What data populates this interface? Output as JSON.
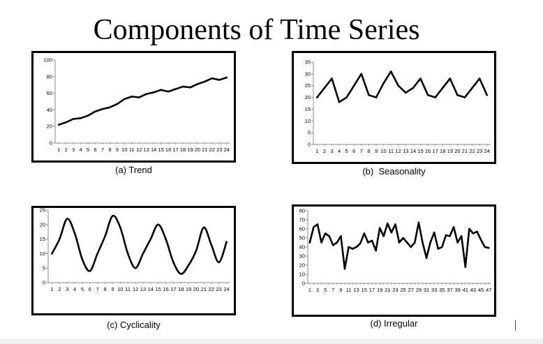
{
  "title": "Components of Time Series",
  "chart_data": [
    {
      "type": "line",
      "caption": "(a) Trend",
      "x": [
        1,
        2,
        3,
        4,
        5,
        6,
        7,
        8,
        9,
        10,
        11,
        12,
        13,
        14,
        15,
        16,
        17,
        18,
        19,
        20,
        21,
        22,
        23,
        24
      ],
      "values": [
        22,
        25,
        29,
        30,
        33,
        38,
        41,
        43,
        47,
        53,
        56,
        55,
        59,
        61,
        64,
        62,
        65,
        68,
        67,
        71,
        74,
        78,
        76,
        79
      ],
      "ylim": [
        0,
        100
      ],
      "yticks": [
        0,
        20,
        40,
        60,
        80,
        100
      ],
      "grid": false
    },
    {
      "type": "line",
      "caption": "(b)  Seasonality",
      "x": [
        1,
        2,
        3,
        4,
        5,
        6,
        7,
        8,
        9,
        10,
        11,
        12,
        13,
        14,
        15,
        16,
        17,
        18,
        19,
        20,
        21,
        22,
        23,
        24
      ],
      "values": [
        20,
        24,
        28,
        18,
        20,
        25,
        30,
        21,
        20,
        26,
        31,
        25,
        22,
        24,
        28,
        21,
        20,
        24,
        28,
        21,
        20,
        24,
        28,
        21
      ],
      "ylim": [
        0,
        35
      ],
      "yticks": [
        0,
        5,
        10,
        15,
        20,
        25,
        30,
        35
      ],
      "grid": false
    },
    {
      "type": "line",
      "caption": "(c) Cyclicality",
      "x": [
        1,
        2,
        3,
        4,
        5,
        6,
        7,
        8,
        9,
        10,
        11,
        12,
        13,
        14,
        15,
        16,
        17,
        18,
        19,
        20,
        21,
        22,
        23,
        24
      ],
      "values": [
        10,
        15,
        22,
        17,
        8,
        4,
        10,
        16,
        23,
        19,
        10,
        5,
        10,
        15,
        20,
        15,
        7,
        3,
        6,
        11,
        19,
        13,
        7,
        14
      ],
      "ylim": [
        0,
        25
      ],
      "yticks": [
        0,
        5,
        10,
        15,
        20,
        25
      ],
      "grid": false
    },
    {
      "type": "line",
      "caption": "(d) Irregular",
      "x": [
        1,
        2,
        3,
        4,
        5,
        6,
        7,
        8,
        9,
        10,
        11,
        12,
        13,
        14,
        15,
        16,
        17,
        18,
        19,
        20,
        21,
        22,
        23,
        24,
        25,
        26,
        27,
        28,
        29,
        30,
        31,
        32,
        33,
        34,
        35,
        36,
        37,
        38,
        39,
        40,
        41,
        42,
        43,
        44,
        45,
        46,
        47
      ],
      "values": [
        45,
        62,
        65,
        45,
        55,
        52,
        42,
        45,
        52,
        16,
        40,
        38,
        40,
        44,
        55,
        45,
        47,
        36,
        61,
        52,
        66,
        56,
        65,
        45,
        50,
        45,
        40,
        45,
        67,
        45,
        28,
        45,
        56,
        38,
        40,
        53,
        52,
        62,
        45,
        52,
        18,
        60,
        55,
        57,
        48,
        40,
        39
      ],
      "ylim": [
        0,
        80
      ],
      "yticks": [
        0,
        10,
        20,
        30,
        40,
        50,
        60,
        70,
        80
      ],
      "xticks_shown": [
        1,
        3,
        5,
        7,
        9,
        11,
        13,
        15,
        17,
        19,
        21,
        23,
        25,
        27,
        29,
        31,
        33,
        35,
        37,
        39,
        41,
        43,
        45,
        47
      ],
      "grid": false
    }
  ]
}
